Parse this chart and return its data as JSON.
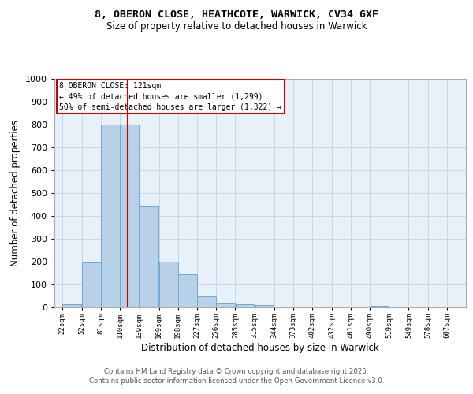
{
  "title1": "8, OBERON CLOSE, HEATHCOTE, WARWICK, CV34 6XF",
  "title2": "Size of property relative to detached houses in Warwick",
  "xlabel": "Distribution of detached houses by size in Warwick",
  "ylabel": "Number of detached properties",
  "footer1": "Contains HM Land Registry data © Crown copyright and database right 2025.",
  "footer2": "Contains public sector information licensed under the Open Government Licence v3.0.",
  "annotation_line1": "8 OBERON CLOSE: 121sqm",
  "annotation_line2": "← 49% of detached houses are smaller (1,299)",
  "annotation_line3": "50% of semi-detached houses are larger (1,322) →",
  "bar_left_edges": [
    22,
    52,
    81,
    110,
    139,
    169,
    198,
    227,
    256,
    285,
    315,
    344,
    373,
    402,
    432,
    461,
    490,
    519,
    549,
    578
  ],
  "bar_widths": [
    29,
    29,
    29,
    29,
    29,
    29,
    29,
    29,
    29,
    29,
    29,
    29,
    29,
    29,
    29,
    29,
    29,
    29,
    29,
    29
  ],
  "bar_heights": [
    15,
    195,
    800,
    800,
    440,
    200,
    145,
    48,
    18,
    13,
    10,
    0,
    0,
    0,
    0,
    0,
    8,
    0,
    0,
    0
  ],
  "tick_labels": [
    "22sqm",
    "52sqm",
    "81sqm",
    "110sqm",
    "139sqm",
    "169sqm",
    "198sqm",
    "227sqm",
    "256sqm",
    "285sqm",
    "315sqm",
    "344sqm",
    "373sqm",
    "402sqm",
    "432sqm",
    "461sqm",
    "490sqm",
    "519sqm",
    "549sqm",
    "578sqm",
    "607sqm"
  ],
  "tick_positions": [
    22,
    52,
    81,
    110,
    139,
    169,
    198,
    227,
    256,
    285,
    315,
    344,
    373,
    402,
    432,
    461,
    490,
    519,
    549,
    578,
    607
  ],
  "bar_color": "#b8d0e8",
  "bar_edge_color": "#6aaad4",
  "vline_x": 121,
  "vline_color": "#cc0000",
  "ylim": [
    0,
    1000
  ],
  "xlim": [
    10,
    636
  ],
  "grid_color": "#c5d8ed",
  "bg_color": "#e8f0f8",
  "annotation_box_edge": "#cc0000",
  "fig_bg": "#ffffff"
}
